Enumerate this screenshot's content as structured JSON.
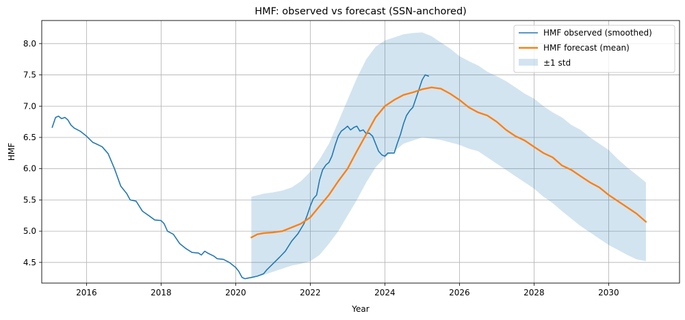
{
  "chart_data": {
    "type": "line",
    "title": "HMF: observed vs forecast (SSN-anchored)",
    "xlabel": "Year",
    "ylabel": "HMF",
    "xlim": [
      2014.8,
      2031.9
    ],
    "ylim": [
      4.17,
      8.37
    ],
    "x_ticks": [
      2016,
      2018,
      2020,
      2022,
      2024,
      2026,
      2028,
      2030
    ],
    "y_ticks": [
      4.5,
      5.0,
      5.5,
      6.0,
      6.5,
      7.0,
      7.5,
      8.0
    ],
    "x_tick_labels": [
      "2016",
      "2018",
      "2020",
      "2022",
      "2024",
      "2026",
      "2028",
      "2030"
    ],
    "y_tick_labels": [
      "4.5",
      "5.0",
      "5.5",
      "6.0",
      "6.5",
      "7.0",
      "7.5",
      "8.0"
    ],
    "grid": true,
    "legend_position": "top-right",
    "series": [
      {
        "name": "HMF observed (smoothed)",
        "color": "#1f77b4",
        "points": [
          [
            2015.08,
            6.66
          ],
          [
            2015.17,
            6.82
          ],
          [
            2015.25,
            6.84
          ],
          [
            2015.33,
            6.8
          ],
          [
            2015.42,
            6.82
          ],
          [
            2015.5,
            6.78
          ],
          [
            2015.58,
            6.7
          ],
          [
            2015.67,
            6.65
          ],
          [
            2015.83,
            6.6
          ],
          [
            2016.0,
            6.52
          ],
          [
            2016.17,
            6.42
          ],
          [
            2016.25,
            6.4
          ],
          [
            2016.42,
            6.35
          ],
          [
            2016.58,
            6.24
          ],
          [
            2016.75,
            6.0
          ],
          [
            2016.92,
            5.72
          ],
          [
            2017.08,
            5.6
          ],
          [
            2017.17,
            5.5
          ],
          [
            2017.33,
            5.48
          ],
          [
            2017.5,
            5.32
          ],
          [
            2017.67,
            5.25
          ],
          [
            2017.83,
            5.18
          ],
          [
            2018.0,
            5.17
          ],
          [
            2018.08,
            5.12
          ],
          [
            2018.17,
            5.0
          ],
          [
            2018.33,
            4.95
          ],
          [
            2018.5,
            4.8
          ],
          [
            2018.67,
            4.72
          ],
          [
            2018.83,
            4.66
          ],
          [
            2019.0,
            4.65
          ],
          [
            2019.08,
            4.62
          ],
          [
            2019.17,
            4.68
          ],
          [
            2019.25,
            4.65
          ],
          [
            2019.42,
            4.6
          ],
          [
            2019.5,
            4.56
          ],
          [
            2019.67,
            4.55
          ],
          [
            2019.83,
            4.5
          ],
          [
            2020.0,
            4.42
          ],
          [
            2020.08,
            4.36
          ],
          [
            2020.17,
            4.26
          ],
          [
            2020.25,
            4.24
          ],
          [
            2020.33,
            4.25
          ],
          [
            2020.42,
            4.26
          ],
          [
            2020.58,
            4.28
          ],
          [
            2020.75,
            4.32
          ],
          [
            2020.83,
            4.38
          ],
          [
            2021.0,
            4.48
          ],
          [
            2021.17,
            4.58
          ],
          [
            2021.33,
            4.68
          ],
          [
            2021.5,
            4.84
          ],
          [
            2021.67,
            4.96
          ],
          [
            2021.83,
            5.12
          ],
          [
            2021.92,
            5.26
          ],
          [
            2022.0,
            5.4
          ],
          [
            2022.08,
            5.52
          ],
          [
            2022.17,
            5.58
          ],
          [
            2022.25,
            5.82
          ],
          [
            2022.33,
            5.98
          ],
          [
            2022.42,
            6.06
          ],
          [
            2022.5,
            6.1
          ],
          [
            2022.58,
            6.2
          ],
          [
            2022.67,
            6.38
          ],
          [
            2022.75,
            6.52
          ],
          [
            2022.83,
            6.6
          ],
          [
            2022.92,
            6.64
          ],
          [
            2023.0,
            6.68
          ],
          [
            2023.08,
            6.62
          ],
          [
            2023.17,
            6.66
          ],
          [
            2023.25,
            6.68
          ],
          [
            2023.33,
            6.6
          ],
          [
            2023.42,
            6.62
          ],
          [
            2023.5,
            6.56
          ],
          [
            2023.58,
            6.57
          ],
          [
            2023.67,
            6.52
          ],
          [
            2023.75,
            6.4
          ],
          [
            2023.83,
            6.28
          ],
          [
            2023.92,
            6.22
          ],
          [
            2024.0,
            6.2
          ],
          [
            2024.08,
            6.25
          ],
          [
            2024.17,
            6.25
          ],
          [
            2024.25,
            6.25
          ],
          [
            2024.33,
            6.4
          ],
          [
            2024.42,
            6.55
          ],
          [
            2024.5,
            6.72
          ],
          [
            2024.58,
            6.85
          ],
          [
            2024.67,
            6.93
          ],
          [
            2024.75,
            6.98
          ],
          [
            2024.83,
            7.12
          ],
          [
            2024.92,
            7.28
          ],
          [
            2025.0,
            7.42
          ],
          [
            2025.08,
            7.5
          ],
          [
            2025.17,
            7.48
          ]
        ]
      },
      {
        "name": "HMF forecast (mean)",
        "color": "#ff7f0e",
        "points": [
          [
            2020.42,
            4.9
          ],
          [
            2020.58,
            4.95
          ],
          [
            2020.75,
            4.97
          ],
          [
            2021.0,
            4.98
          ],
          [
            2021.25,
            5.0
          ],
          [
            2021.5,
            5.06
          ],
          [
            2021.75,
            5.12
          ],
          [
            2022.0,
            5.22
          ],
          [
            2022.25,
            5.4
          ],
          [
            2022.5,
            5.58
          ],
          [
            2022.75,
            5.8
          ],
          [
            2023.0,
            6.0
          ],
          [
            2023.25,
            6.28
          ],
          [
            2023.5,
            6.55
          ],
          [
            2023.75,
            6.82
          ],
          [
            2024.0,
            7.0
          ],
          [
            2024.25,
            7.1
          ],
          [
            2024.5,
            7.18
          ],
          [
            2024.75,
            7.22
          ],
          [
            2025.0,
            7.27
          ],
          [
            2025.25,
            7.3
          ],
          [
            2025.5,
            7.28
          ],
          [
            2025.75,
            7.2
          ],
          [
            2026.0,
            7.1
          ],
          [
            2026.25,
            6.98
          ],
          [
            2026.5,
            6.9
          ],
          [
            2026.75,
            6.85
          ],
          [
            2027.0,
            6.75
          ],
          [
            2027.25,
            6.62
          ],
          [
            2027.5,
            6.52
          ],
          [
            2027.75,
            6.45
          ],
          [
            2028.0,
            6.35
          ],
          [
            2028.25,
            6.25
          ],
          [
            2028.5,
            6.18
          ],
          [
            2028.75,
            6.05
          ],
          [
            2029.0,
            5.98
          ],
          [
            2029.25,
            5.88
          ],
          [
            2029.5,
            5.78
          ],
          [
            2029.75,
            5.7
          ],
          [
            2030.0,
            5.58
          ],
          [
            2030.25,
            5.48
          ],
          [
            2030.5,
            5.38
          ],
          [
            2030.75,
            5.28
          ],
          [
            2031.0,
            5.15
          ]
        ]
      }
    ],
    "band": {
      "name": "±1 std",
      "color": "#1f77b4",
      "opacity": 0.2,
      "x": [
        2020.42,
        2020.75,
        2021.0,
        2021.25,
        2021.5,
        2021.75,
        2022.0,
        2022.25,
        2022.5,
        2022.75,
        2023.0,
        2023.25,
        2023.5,
        2023.75,
        2024.0,
        2024.25,
        2024.5,
        2024.75,
        2025.0,
        2025.25,
        2025.5,
        2025.75,
        2026.0,
        2026.25,
        2026.5,
        2026.75,
        2027.0,
        2027.25,
        2027.5,
        2027.75,
        2028.0,
        2028.25,
        2028.5,
        2028.75,
        2029.0,
        2029.25,
        2029.5,
        2029.75,
        2030.0,
        2030.25,
        2030.5,
        2030.75,
        2031.0
      ],
      "upper": [
        5.55,
        5.6,
        5.62,
        5.65,
        5.7,
        5.8,
        5.95,
        6.15,
        6.4,
        6.75,
        7.1,
        7.45,
        7.75,
        7.95,
        8.05,
        8.1,
        8.15,
        8.17,
        8.18,
        8.12,
        8.02,
        7.92,
        7.8,
        7.72,
        7.65,
        7.55,
        7.48,
        7.4,
        7.3,
        7.2,
        7.12,
        7.0,
        6.9,
        6.82,
        6.7,
        6.62,
        6.5,
        6.4,
        6.3,
        6.15,
        6.02,
        5.9,
        5.78
      ],
      "lower": [
        4.25,
        4.3,
        4.35,
        4.4,
        4.45,
        4.48,
        4.52,
        4.62,
        4.8,
        5.0,
        5.25,
        5.5,
        5.78,
        6.02,
        6.18,
        6.28,
        6.4,
        6.45,
        6.5,
        6.48,
        6.46,
        6.42,
        6.38,
        6.32,
        6.28,
        6.18,
        6.08,
        5.98,
        5.88,
        5.78,
        5.68,
        5.55,
        5.45,
        5.32,
        5.2,
        5.08,
        4.98,
        4.88,
        4.78,
        4.7,
        4.62,
        4.55,
        4.52
      ]
    }
  }
}
